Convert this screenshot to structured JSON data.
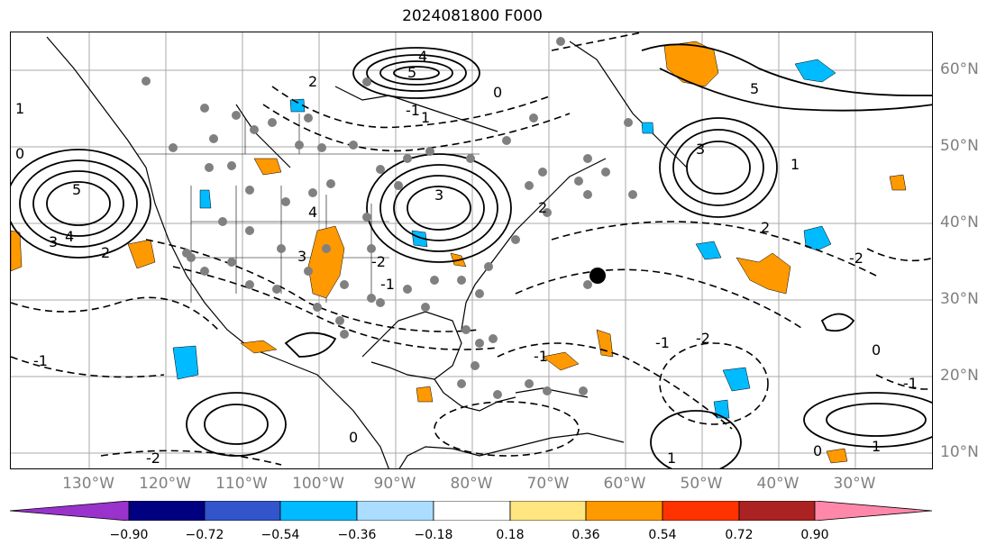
{
  "title": "2024081800 F000",
  "lon_labels": [
    "130°W",
    "120°W",
    "110°W",
    "100°W",
    "90°W",
    "80°W",
    "70°W",
    "60°W",
    "50°W",
    "40°W",
    "30°W"
  ],
  "lat_labels": [
    "60°N",
    "50°N",
    "40°N",
    "30°N",
    "20°N",
    "10°N"
  ],
  "colorbar": {
    "ticks": [
      "−0.90",
      "−0.72",
      "−0.54",
      "−0.36",
      "−0.18",
      "0.18",
      "0.36",
      "0.54",
      "0.72",
      "0.90"
    ],
    "colors": [
      "#9933cc",
      "#000080",
      "#3355cc",
      "#00bbff",
      "#aaddff",
      "#ffffff",
      "#ffe680",
      "#ff9900",
      "#ff3300",
      "#aa2222",
      "#ff88aa"
    ]
  },
  "contour_labels": [
    "5",
    "4",
    "3",
    "2",
    "1",
    "0",
    "-1",
    "-2",
    "5",
    "4",
    "3",
    "2",
    "0",
    "-1",
    "-2",
    "4",
    "3",
    "2",
    "1",
    "-1",
    "5",
    "3",
    "2",
    "1",
    "0",
    "-1",
    "-2",
    "1",
    "-1",
    "0",
    "-1",
    "-2",
    "0",
    "1"
  ],
  "colors": {
    "positive": "#ff9900",
    "negative": "#00bbff",
    "grid": "#aaaaaa",
    "station": "#808080"
  }
}
